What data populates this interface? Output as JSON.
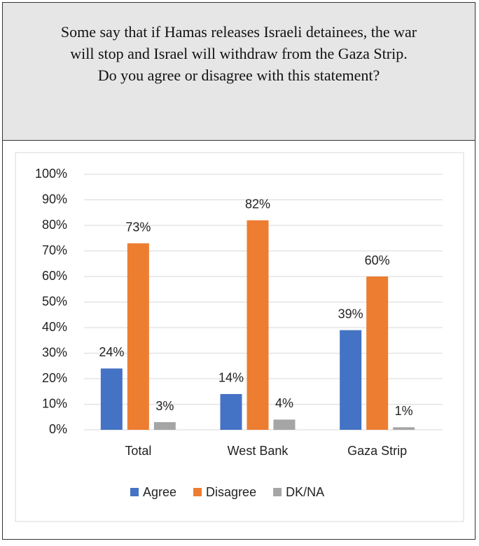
{
  "header": {
    "lines": [
      "Some say that if Hamas releases Israeli detainees, the war",
      "will stop and Israel will withdraw from the Gaza Strip.",
      "Do you agree or disagree with this statement?"
    ]
  },
  "chart_data": {
    "type": "bar",
    "categories": [
      "Total",
      "West Bank",
      "Gaza Strip"
    ],
    "series": [
      {
        "name": "Agree",
        "color": "#4472c4",
        "values": [
          24,
          14,
          39
        ],
        "value_labels": [
          "24%",
          "14%",
          "39%"
        ]
      },
      {
        "name": "Disagree",
        "color": "#ed7d31",
        "values": [
          73,
          82,
          60
        ],
        "value_labels": [
          "73%",
          "82%",
          "60%"
        ]
      },
      {
        "name": "DK/NA",
        "color": "#a5a5a5",
        "values": [
          3,
          4,
          1
        ],
        "value_labels": [
          "3%",
          "4%",
          "1%"
        ]
      }
    ],
    "ylim": [
      0,
      100
    ],
    "yticks": [
      {
        "value": 0,
        "label": "0%"
      },
      {
        "value": 10,
        "label": "10%"
      },
      {
        "value": 20,
        "label": "20%"
      },
      {
        "value": 30,
        "label": "30%"
      },
      {
        "value": 40,
        "label": "40%"
      },
      {
        "value": 50,
        "label": "50%"
      },
      {
        "value": 60,
        "label": "60%"
      },
      {
        "value": 70,
        "label": "70%"
      },
      {
        "value": 80,
        "label": "80%"
      },
      {
        "value": 90,
        "label": "90%"
      },
      {
        "value": 100,
        "label": "100%"
      }
    ],
    "grid": true,
    "legend": "bottom"
  }
}
